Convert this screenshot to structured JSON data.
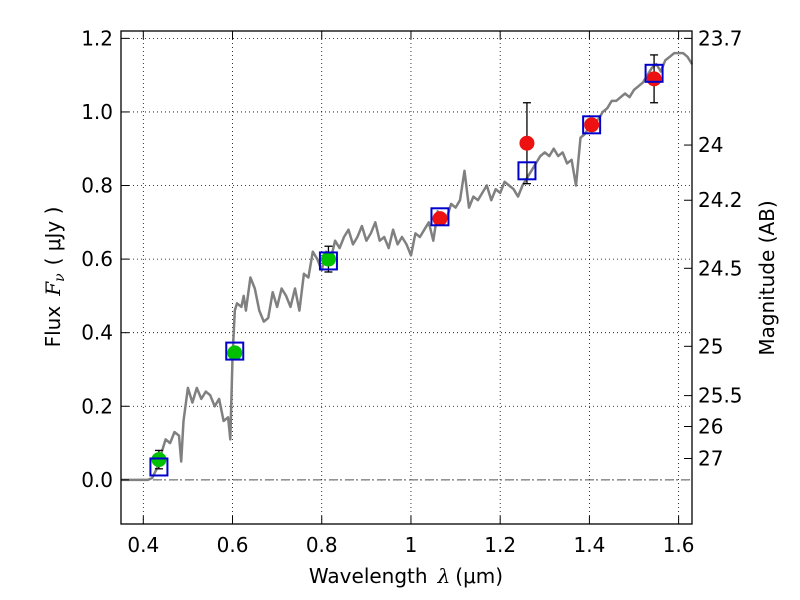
{
  "chart_data": {
    "type": "line",
    "xlabel": "Wavelength",
    "xlabel_symbol": "λ",
    "xlabel_unit": "(μm)",
    "ylabel": "Flux",
    "ylabel_symbol": "F",
    "ylabel_subscript": "ν",
    "ylabel_unit": "( μJy )",
    "ylabel_right": "Magnitude (AB)",
    "xlim": [
      0.35,
      1.63
    ],
    "ylim": [
      -0.12,
      1.22
    ],
    "x_ticks": [
      0.4,
      0.6,
      0.8,
      1.0,
      1.2,
      1.4,
      1.6
    ],
    "x_tick_labels": [
      "0.4",
      "0.6",
      "0.8",
      "1",
      "1.2",
      "1.4",
      "1.6"
    ],
    "y_ticks": [
      0.0,
      0.2,
      0.4,
      0.6,
      0.8,
      1.0,
      1.2
    ],
    "y_tick_labels": [
      "0.0",
      "0.2",
      "0.4",
      "0.6",
      "0.8",
      "1.0",
      "1.2"
    ],
    "mag_ticks": [
      {
        "mag": "23.7",
        "flux": 1.2
      },
      {
        "mag": "24",
        "flux": 0.91
      },
      {
        "mag": "24.2",
        "flux": 0.76
      },
      {
        "mag": "24.5",
        "flux": 0.575
      },
      {
        "mag": "25",
        "flux": 0.363
      },
      {
        "mag": "25.5",
        "flux": 0.229
      },
      {
        "mag": "26",
        "flux": 0.145
      },
      {
        "mag": "27",
        "flux": 0.058
      }
    ],
    "grid": true,
    "colors": {
      "model": "#808080",
      "obs_blue_filters": "#00c000",
      "obs_red_filters": "#ee1111",
      "model_synthetic": "#0000cc",
      "zero_line": "#555555"
    },
    "model_spectrum": {
      "x": [
        0.35,
        0.38,
        0.41,
        0.42,
        0.43,
        0.44,
        0.45,
        0.46,
        0.47,
        0.48,
        0.485,
        0.49,
        0.5,
        0.51,
        0.52,
        0.53,
        0.54,
        0.55,
        0.56,
        0.57,
        0.58,
        0.59,
        0.595,
        0.6,
        0.605,
        0.61,
        0.62,
        0.625,
        0.63,
        0.64,
        0.65,
        0.66,
        0.67,
        0.68,
        0.69,
        0.7,
        0.71,
        0.72,
        0.73,
        0.74,
        0.75,
        0.76,
        0.77,
        0.78,
        0.79,
        0.8,
        0.81,
        0.82,
        0.83,
        0.84,
        0.85,
        0.86,
        0.87,
        0.88,
        0.89,
        0.9,
        0.91,
        0.92,
        0.93,
        0.94,
        0.95,
        0.96,
        0.97,
        0.98,
        0.99,
        1.0,
        1.01,
        1.02,
        1.03,
        1.04,
        1.05,
        1.06,
        1.07,
        1.08,
        1.09,
        1.1,
        1.11,
        1.12,
        1.13,
        1.14,
        1.15,
        1.16,
        1.17,
        1.18,
        1.19,
        1.2,
        1.21,
        1.22,
        1.23,
        1.24,
        1.25,
        1.26,
        1.27,
        1.28,
        1.29,
        1.3,
        1.31,
        1.32,
        1.33,
        1.34,
        1.35,
        1.36,
        1.37,
        1.38,
        1.39,
        1.4,
        1.41,
        1.42,
        1.43,
        1.44,
        1.45,
        1.46,
        1.47,
        1.48,
        1.49,
        1.5,
        1.51,
        1.52,
        1.53,
        1.54,
        1.55,
        1.56,
        1.57,
        1.58,
        1.59,
        1.6,
        1.61,
        1.62,
        1.63
      ],
      "y": [
        0.0,
        0.0,
        0.0,
        0.005,
        0.03,
        0.07,
        0.11,
        0.1,
        0.13,
        0.12,
        0.05,
        0.16,
        0.25,
        0.21,
        0.25,
        0.22,
        0.24,
        0.23,
        0.2,
        0.22,
        0.16,
        0.17,
        0.11,
        0.33,
        0.46,
        0.48,
        0.47,
        0.5,
        0.46,
        0.55,
        0.52,
        0.46,
        0.43,
        0.44,
        0.51,
        0.47,
        0.52,
        0.5,
        0.47,
        0.52,
        0.46,
        0.56,
        0.55,
        0.62,
        0.6,
        0.57,
        0.62,
        0.6,
        0.65,
        0.63,
        0.66,
        0.68,
        0.64,
        0.66,
        0.69,
        0.65,
        0.67,
        0.7,
        0.65,
        0.66,
        0.63,
        0.68,
        0.64,
        0.66,
        0.64,
        0.61,
        0.67,
        0.66,
        0.68,
        0.7,
        0.65,
        0.73,
        0.7,
        0.71,
        0.75,
        0.74,
        0.76,
        0.84,
        0.74,
        0.77,
        0.76,
        0.78,
        0.8,
        0.76,
        0.79,
        0.78,
        0.81,
        0.8,
        0.79,
        0.77,
        0.8,
        0.82,
        0.84,
        0.86,
        0.88,
        0.89,
        0.88,
        0.9,
        0.88,
        0.89,
        0.86,
        0.87,
        0.8,
        0.93,
        0.94,
        0.96,
        0.97,
        0.98,
        1.0,
        1.01,
        1.03,
        1.03,
        1.04,
        1.05,
        1.04,
        1.06,
        1.07,
        1.08,
        1.1,
        1.12,
        1.13,
        1.11,
        1.14,
        1.15,
        1.16,
        1.16,
        1.16,
        1.15,
        1.13
      ]
    },
    "synthetic_photometry": {
      "x": [
        0.435,
        0.605,
        0.815,
        1.065,
        1.26,
        1.405,
        1.545
      ],
      "y": [
        0.035,
        0.35,
        0.595,
        0.715,
        0.84,
        0.965,
        1.105
      ]
    },
    "observations": [
      {
        "x": 0.435,
        "y": 0.055,
        "err": 0.025,
        "color": "green"
      },
      {
        "x": 0.605,
        "y": 0.345,
        "err": 0.015,
        "color": "green"
      },
      {
        "x": 0.815,
        "y": 0.6,
        "err": 0.035,
        "color": "green"
      },
      {
        "x": 1.065,
        "y": 0.71,
        "err": 0.0,
        "color": "red"
      },
      {
        "x": 1.26,
        "y": 0.915,
        "err": 0.11,
        "color": "red"
      },
      {
        "x": 1.405,
        "y": 0.965,
        "err": 0.0,
        "color": "red"
      },
      {
        "x": 1.545,
        "y": 1.09,
        "err": 0.065,
        "color": "red"
      }
    ]
  }
}
